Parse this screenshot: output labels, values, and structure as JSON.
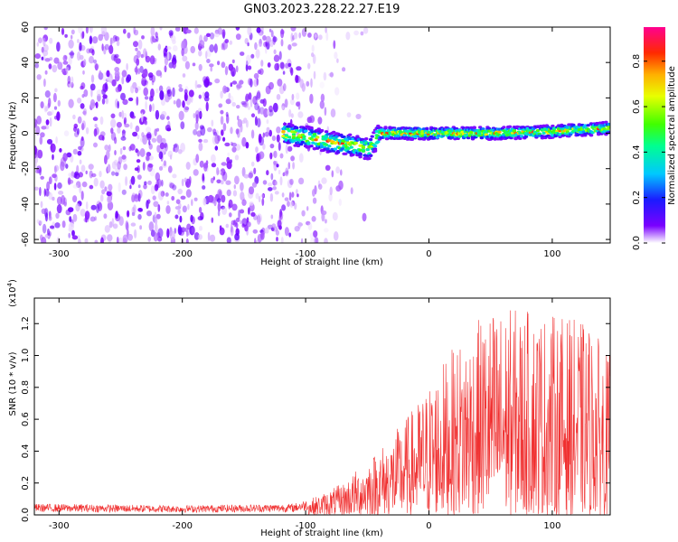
{
  "page_title": "GN03.2023.228.22.27.E19",
  "chart_data": [
    {
      "type": "heatmap",
      "xlabel": "Height of straight line (km)",
      "ylabel": "Frequency (Hz)",
      "xlim": [
        -320,
        147
      ],
      "ylim": [
        -62,
        60
      ],
      "x_ticks": [
        -300,
        -200,
        -100,
        0,
        100
      ],
      "x_tick_labels": [
        "-300",
        "-200",
        "-100",
        "0",
        "100"
      ],
      "y_ticks": [
        -60,
        -40,
        -20,
        0,
        20,
        40,
        60
      ],
      "y_tick_labels": [
        "-60",
        "-40",
        "-20",
        "0",
        "20",
        "40",
        "60"
      ],
      "colorbar": {
        "label": "Normalized spectral amplitude",
        "range": [
          0,
          0.95
        ],
        "ticks": [
          0.0,
          0.2,
          0.4,
          0.6,
          0.8
        ],
        "tick_labels": [
          "0.0",
          "0.2",
          "0.4",
          "0.6",
          "0.8"
        ],
        "colormap": "rainbow"
      },
      "features": {
        "broadband_noise_x_range": [
          -320,
          -85
        ],
        "broadband_noise_amplitude": 0.1,
        "signal_track": [
          {
            "x": -118,
            "f": 0
          },
          {
            "x": -100,
            "f": -2
          },
          {
            "x": -80,
            "f": -5
          },
          {
            "x": -60,
            "f": -7
          },
          {
            "x": -48,
            "f": -9
          },
          {
            "x": -40,
            "f": 0
          },
          {
            "x": 0,
            "f": 0
          },
          {
            "x": 50,
            "f": 0
          },
          {
            "x": 100,
            "f": 1
          },
          {
            "x": 147,
            "f": 3
          }
        ],
        "signal_peak_amplitude": 0.9
      }
    },
    {
      "type": "line",
      "xlabel": "Height of straight line (km)",
      "ylabel": "SNR (10 * v/v)",
      "y_scale_note": "(x10",
      "y_scale_exponent": "4",
      "xlim": [
        -320,
        147
      ],
      "ylim": [
        0,
        1.36
      ],
      "x_ticks": [
        -300,
        -200,
        -100,
        0,
        100
      ],
      "x_tick_labels": [
        "-300",
        "-200",
        "-100",
        "0",
        "100"
      ],
      "y_ticks": [
        0.0,
        0.2,
        0.4,
        0.6,
        0.8,
        1.0,
        1.2
      ],
      "y_tick_labels": [
        "0.0",
        "0.2",
        "0.4",
        "0.6",
        "0.8",
        "1.0",
        "1.2"
      ],
      "line_color": "#f03030",
      "envelope": [
        {
          "x": -320,
          "y": 0.07
        },
        {
          "x": -200,
          "y": 0.06
        },
        {
          "x": -110,
          "y": 0.07
        },
        {
          "x": -90,
          "y": 0.12
        },
        {
          "x": -70,
          "y": 0.2
        },
        {
          "x": -50,
          "y": 0.35
        },
        {
          "x": -30,
          "y": 0.5
        },
        {
          "x": -10,
          "y": 0.7
        },
        {
          "x": 10,
          "y": 0.95
        },
        {
          "x": 30,
          "y": 1.15
        },
        {
          "x": 50,
          "y": 1.3
        },
        {
          "x": 70,
          "y": 1.3
        },
        {
          "x": 90,
          "y": 1.28
        },
        {
          "x": 110,
          "y": 1.25
        },
        {
          "x": 130,
          "y": 1.2
        },
        {
          "x": 147,
          "y": 1.0
        }
      ]
    }
  ]
}
